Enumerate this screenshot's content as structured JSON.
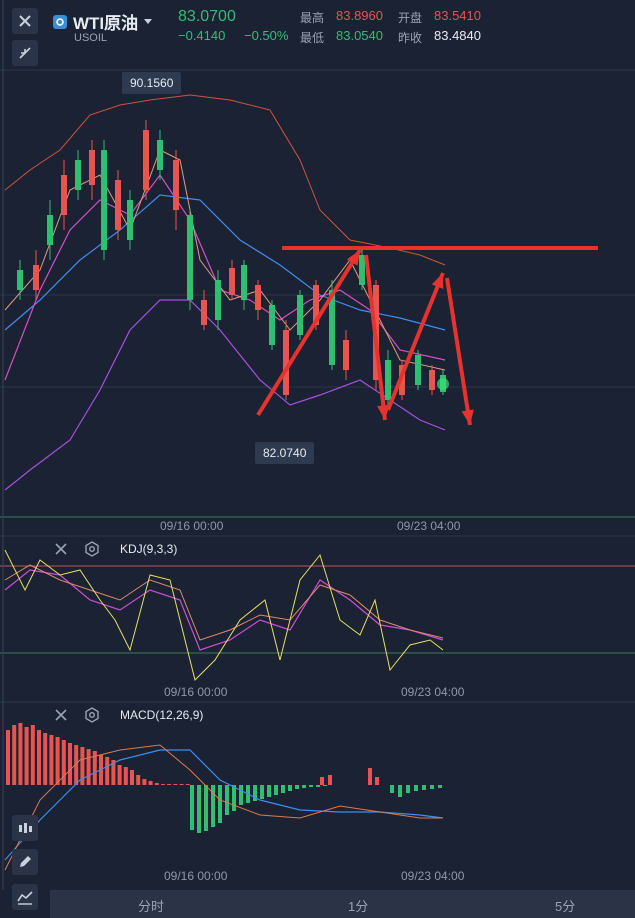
{
  "header": {
    "title": "WTI原油",
    "symbol": "USOIL",
    "price": "83.0700",
    "change": "−0.4140",
    "change_pct": "−0.50%",
    "stats": {
      "high_label": "最高",
      "high_value": "83.8960",
      "open_label": "开盘",
      "open_value": "83.5410",
      "low_label": "最低",
      "low_value": "83.0540",
      "prev_label": "昨收",
      "prev_value": "83.4840"
    }
  },
  "chart": {
    "max_tag": "90.1560",
    "min_tag": "82.0740",
    "time_labels": [
      "09/16 00:00",
      "09/23 04:00"
    ]
  },
  "kdj": {
    "label": "KDJ(9,3,3)",
    "time_labels": [
      "09/16 00:00",
      "09/23 04:00"
    ]
  },
  "macd": {
    "label": "MACD(12,26,9)",
    "time_labels": [
      "09/16 00:00",
      "09/23 04:00"
    ]
  },
  "tabs": [
    "分时",
    "1分",
    "5分"
  ],
  "colors": {
    "up": "#e8544f",
    "down": "#2fbf71",
    "annotation": "#e8322d",
    "background": "#1a2233"
  }
}
